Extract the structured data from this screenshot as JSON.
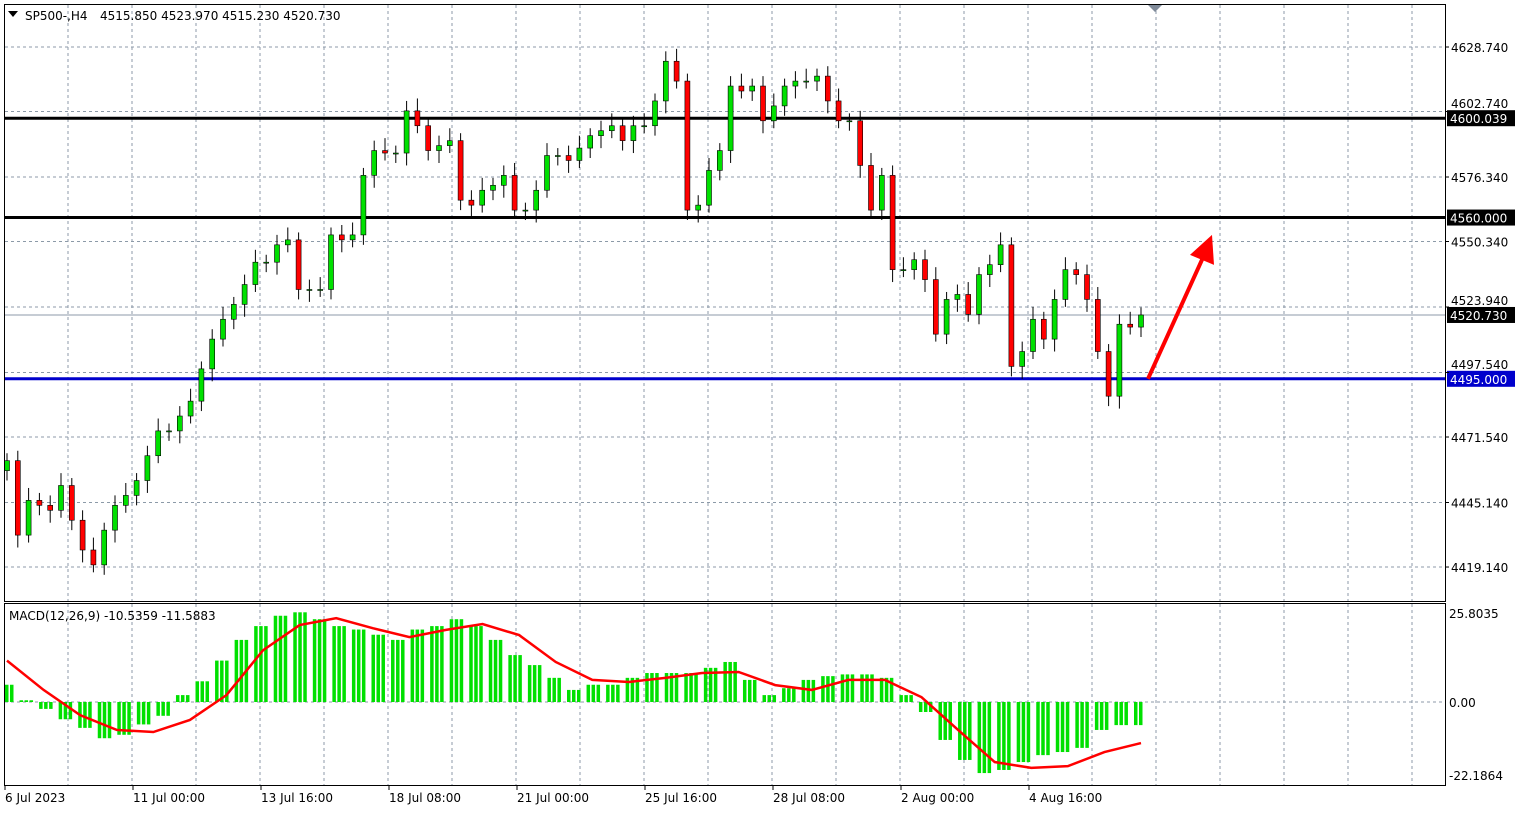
{
  "header": {
    "symbol": "SP500-,H4",
    "ohlc": "4515.850 4523.970 4515.230 4520.730"
  },
  "chart_data": [
    {
      "type": "candlestick",
      "title": "SP500-,H4 4515.850 4523.970 4515.230 4520.730",
      "ylim": [
        4405,
        4642
      ],
      "grid": true,
      "y_ticks": [
        "4628.740",
        "4602.740",
        "4576.340",
        "4550.340",
        "4523.940",
        "4497.540",
        "4471.540",
        "4445.140",
        "4419.140"
      ],
      "x_ticks": [
        "6 Jul 2023",
        "11 Jul 00:00",
        "13 Jul 16:00",
        "18 Jul 08:00",
        "21 Jul 00:00",
        "25 Jul 16:00",
        "28 Jul 08:00",
        "2 Aug 00:00",
        "4 Aug 16:00"
      ],
      "closes": [
        4462,
        4432,
        4446,
        4444,
        4442,
        4452,
        4438,
        4426,
        4420,
        4434,
        4444,
        4448,
        4454,
        4464,
        4474,
        4474,
        4480,
        4486,
        4499,
        4511,
        4519,
        4525,
        4533,
        4542,
        4542,
        4549,
        4551,
        4531,
        4531,
        4531,
        4553,
        4551,
        4553,
        4577,
        4587,
        4586,
        4586,
        4603,
        4597,
        4587,
        4589,
        4591,
        4567,
        4565,
        4571,
        4573,
        4577,
        4563,
        4563,
        4571,
        4585,
        4585,
        4583,
        4588,
        4593,
        4595,
        4597,
        4591,
        4597,
        4597,
        4607,
        4623,
        4615,
        4563,
        4565,
        4579,
        4587,
        4613,
        4611,
        4613,
        4599,
        4605,
        4613,
        4615,
        4615,
        4617,
        4607,
        4599,
        4599,
        4581,
        4563,
        4577,
        4539,
        4539,
        4543,
        4535,
        4513,
        4527,
        4529,
        4521,
        4537,
        4541,
        4549,
        4500,
        4506,
        4519,
        4511,
        4527,
        4539,
        4537,
        4527,
        4506,
        4488,
        4517,
        4515.85,
        4520.73
      ],
      "levels": [
        {
          "value": 4600.039,
          "label": "4600.039",
          "color": "#000000"
        },
        {
          "value": 4560.0,
          "label": "4560.000",
          "color": "#000000"
        },
        {
          "value": 4495.0,
          "label": "4495.000",
          "color": "#0000cc"
        }
      ],
      "current_price": {
        "value": 4520.73,
        "label": "4520.730"
      },
      "annotation": {
        "type": "arrow-up",
        "color": "#ff0000",
        "from_price": 4495,
        "to_price": 4553
      },
      "colors": {
        "bull": "#00e000",
        "bear": "#ff0000"
      }
    },
    {
      "type": "bar+line",
      "title": "MACD(12,26,9) -10.5359 -11.5883",
      "ylim": [
        -22.1864,
        25.8035
      ],
      "y_ticks": [
        "25.8035",
        "0.00",
        "-22.1864"
      ],
      "histogram": [
        5,
        0.5,
        -2,
        -5,
        -7.5,
        -10.5,
        -9.5,
        -6.5,
        -4,
        2,
        6,
        12,
        18,
        22,
        25,
        26,
        24,
        22,
        21,
        19.5,
        18,
        21,
        22,
        24,
        22,
        18,
        13.6,
        10.7,
        7,
        3.5,
        5,
        5,
        7,
        8.4,
        8.4,
        8.4,
        9.9,
        11.6,
        6.4,
        2,
        4,
        6.4,
        7.5,
        8,
        8,
        7,
        2,
        -2.9,
        -11,
        -16.8,
        -20.6,
        -19.7,
        -17.4,
        -15.4,
        -14.5,
        -13.3,
        -8.1,
        -6.7,
        -6.7
      ],
      "signal": [
        12,
        3.5,
        -3.8,
        -8.1,
        -8.7,
        -5.2,
        2,
        15,
        22.3,
        24.3,
        21.4,
        18.8,
        20.9,
        22.6,
        19.4,
        11.6,
        6.4,
        5.8,
        7,
        8.4,
        8.7,
        4.9,
        3.5,
        6.4,
        6.4,
        1.4,
        -8.1,
        -17.4,
        -19.1,
        -18.6,
        -14.5,
        -11.9
      ],
      "colors": {
        "histogram": "#00e000",
        "signal": "#ff0000"
      }
    }
  ]
}
